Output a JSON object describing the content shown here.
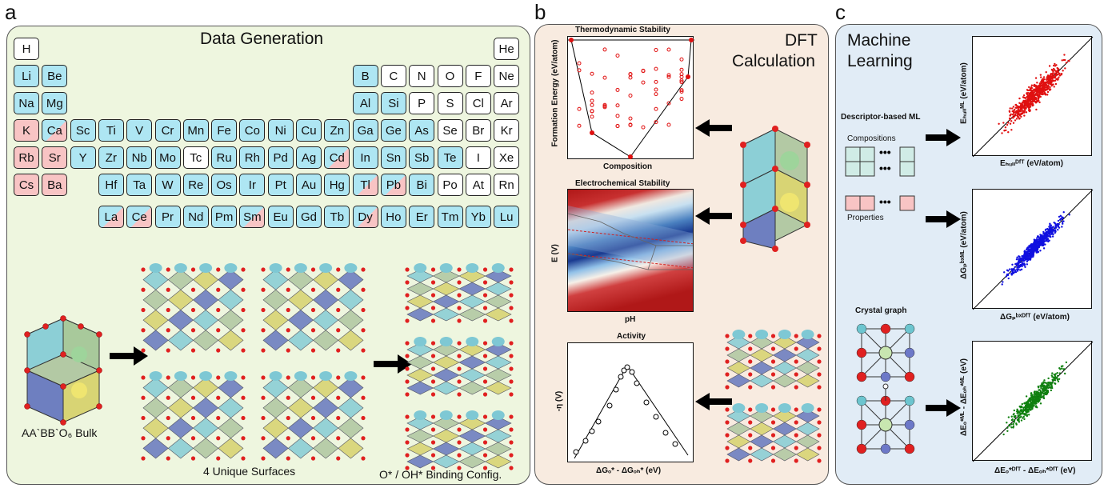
{
  "panels": {
    "a": {
      "letter": "a",
      "title": "Data Generation",
      "bulk_label": "AA`BB`O₆ Bulk",
      "surfaces_label": "4 Unique Surfaces",
      "binding_label": "O* / OH* Binding Config."
    },
    "b": {
      "letter": "b",
      "title_line1": "DFT",
      "title_line2": "Calculation",
      "thermo": {
        "title": "Thermodynamic Stability",
        "ylabel": "Formation Energy (eV/atom)",
        "xlabel": "Composition"
      },
      "electro": {
        "title": "Electrochemical Stability",
        "ylabel": "E (V)",
        "xlabel": "pH"
      },
      "activity": {
        "title": "Activity",
        "ylabel": "-η (V)",
        "xlabel": "ΔGₒ* - ΔGₒₕ* (eV)"
      }
    },
    "c": {
      "letter": "c",
      "title_line1": "Machine",
      "title_line2": "Learning",
      "descriptor_label": "Descriptor-based ML",
      "compositions_label": "Compositions",
      "properties_label": "Properties",
      "crystal_label": "Crystal graph",
      "plot1": {
        "xlabel": "Eₕᵤₗₗᴰᶠᵀ (eV/atom)",
        "ylabel": "Eₕᵤₗₗᴹᴸ (eV/atom)"
      },
      "plot2": {
        "xlabel": "ΔGₚᵇˣᴰᶠᵀ (eV/atom)",
        "ylabel": "ΔGₚᵇˣᴹᴸ (eV/atom)"
      },
      "plot3": {
        "xlabel": "ΔEₒ*ᴰᶠᵀ - ΔEₒₕ*ᴰᶠᵀ (eV)",
        "ylabel": "ΔEₒ*ᴹᴸ - ΔEₒₕ*ᴹᴸ (eV)"
      }
    }
  },
  "periodic_table": [
    {
      "s": "H",
      "r": 0,
      "c": 0,
      "t": "w"
    },
    {
      "s": "He",
      "r": 0,
      "c": 17,
      "t": "w"
    },
    {
      "s": "Li",
      "r": 1,
      "c": 0,
      "t": "b"
    },
    {
      "s": "Be",
      "r": 1,
      "c": 1,
      "t": "b"
    },
    {
      "s": "B",
      "r": 1,
      "c": 12,
      "t": "b"
    },
    {
      "s": "C",
      "r": 1,
      "c": 13,
      "t": "w"
    },
    {
      "s": "N",
      "r": 1,
      "c": 14,
      "t": "w"
    },
    {
      "s": "O",
      "r": 1,
      "c": 15,
      "t": "w"
    },
    {
      "s": "F",
      "r": 1,
      "c": 16,
      "t": "w"
    },
    {
      "s": "Ne",
      "r": 1,
      "c": 17,
      "t": "w"
    },
    {
      "s": "Na",
      "r": 2,
      "c": 0,
      "t": "b"
    },
    {
      "s": "Mg",
      "r": 2,
      "c": 1,
      "t": "b"
    },
    {
      "s": "Al",
      "r": 2,
      "c": 12,
      "t": "b"
    },
    {
      "s": "Si",
      "r": 2,
      "c": 13,
      "t": "b"
    },
    {
      "s": "P",
      "r": 2,
      "c": 14,
      "t": "w"
    },
    {
      "s": "S",
      "r": 2,
      "c": 15,
      "t": "w"
    },
    {
      "s": "Cl",
      "r": 2,
      "c": 16,
      "t": "w"
    },
    {
      "s": "Ar",
      "r": 2,
      "c": 17,
      "t": "w"
    },
    {
      "s": "K",
      "r": 3,
      "c": 0,
      "t": "p"
    },
    {
      "s": "Ca",
      "r": 3,
      "c": 1,
      "t": "pb"
    },
    {
      "s": "Sc",
      "r": 3,
      "c": 2,
      "t": "b"
    },
    {
      "s": "Ti",
      "r": 3,
      "c": 3,
      "t": "b"
    },
    {
      "s": "V",
      "r": 3,
      "c": 4,
      "t": "b"
    },
    {
      "s": "Cr",
      "r": 3,
      "c": 5,
      "t": "b"
    },
    {
      "s": "Mn",
      "r": 3,
      "c": 6,
      "t": "b"
    },
    {
      "s": "Fe",
      "r": 3,
      "c": 7,
      "t": "b"
    },
    {
      "s": "Co",
      "r": 3,
      "c": 8,
      "t": "b"
    },
    {
      "s": "Ni",
      "r": 3,
      "c": 9,
      "t": "b"
    },
    {
      "s": "Cu",
      "r": 3,
      "c": 10,
      "t": "b"
    },
    {
      "s": "Zn",
      "r": 3,
      "c": 11,
      "t": "b"
    },
    {
      "s": "Ga",
      "r": 3,
      "c": 12,
      "t": "b"
    },
    {
      "s": "Ge",
      "r": 3,
      "c": 13,
      "t": "b"
    },
    {
      "s": "As",
      "r": 3,
      "c": 14,
      "t": "b"
    },
    {
      "s": "Se",
      "r": 3,
      "c": 15,
      "t": "w"
    },
    {
      "s": "Br",
      "r": 3,
      "c": 16,
      "t": "w"
    },
    {
      "s": "Kr",
      "r": 3,
      "c": 17,
      "t": "w"
    },
    {
      "s": "Rb",
      "r": 4,
      "c": 0,
      "t": "p"
    },
    {
      "s": "Sr",
      "r": 4,
      "c": 1,
      "t": "p"
    },
    {
      "s": "Y",
      "r": 4,
      "c": 2,
      "t": "b"
    },
    {
      "s": "Zr",
      "r": 4,
      "c": 3,
      "t": "b"
    },
    {
      "s": "Nb",
      "r": 4,
      "c": 4,
      "t": "b"
    },
    {
      "s": "Mo",
      "r": 4,
      "c": 5,
      "t": "b"
    },
    {
      "s": "Tc",
      "r": 4,
      "c": 6,
      "t": "w"
    },
    {
      "s": "Ru",
      "r": 4,
      "c": 7,
      "t": "b"
    },
    {
      "s": "Rh",
      "r": 4,
      "c": 8,
      "t": "b"
    },
    {
      "s": "Pd",
      "r": 4,
      "c": 9,
      "t": "b"
    },
    {
      "s": "Ag",
      "r": 4,
      "c": 10,
      "t": "b"
    },
    {
      "s": "Cd",
      "r": 4,
      "c": 11,
      "t": "pb"
    },
    {
      "s": "In",
      "r": 4,
      "c": 12,
      "t": "b"
    },
    {
      "s": "Sn",
      "r": 4,
      "c": 13,
      "t": "b"
    },
    {
      "s": "Sb",
      "r": 4,
      "c": 14,
      "t": "b"
    },
    {
      "s": "Te",
      "r": 4,
      "c": 15,
      "t": "b"
    },
    {
      "s": "I",
      "r": 4,
      "c": 16,
      "t": "w"
    },
    {
      "s": "Xe",
      "r": 4,
      "c": 17,
      "t": "w"
    },
    {
      "s": "Cs",
      "r": 5,
      "c": 0,
      "t": "p"
    },
    {
      "s": "Ba",
      "r": 5,
      "c": 1,
      "t": "p"
    },
    {
      "s": "Hf",
      "r": 5,
      "c": 3,
      "t": "b"
    },
    {
      "s": "Ta",
      "r": 5,
      "c": 4,
      "t": "b"
    },
    {
      "s": "W",
      "r": 5,
      "c": 5,
      "t": "b"
    },
    {
      "s": "Re",
      "r": 5,
      "c": 6,
      "t": "b"
    },
    {
      "s": "Os",
      "r": 5,
      "c": 7,
      "t": "b"
    },
    {
      "s": "Ir",
      "r": 5,
      "c": 8,
      "t": "b"
    },
    {
      "s": "Pt",
      "r": 5,
      "c": 9,
      "t": "b"
    },
    {
      "s": "Au",
      "r": 5,
      "c": 10,
      "t": "b"
    },
    {
      "s": "Hg",
      "r": 5,
      "c": 11,
      "t": "b"
    },
    {
      "s": "Tl",
      "r": 5,
      "c": 12,
      "t": "pb"
    },
    {
      "s": "Pb",
      "r": 5,
      "c": 13,
      "t": "pb"
    },
    {
      "s": "Bi",
      "r": 5,
      "c": 14,
      "t": "b"
    },
    {
      "s": "Po",
      "r": 5,
      "c": 15,
      "t": "w"
    },
    {
      "s": "At",
      "r": 5,
      "c": 16,
      "t": "w"
    },
    {
      "s": "Rn",
      "r": 5,
      "c": 17,
      "t": "w"
    },
    {
      "s": "La",
      "r": 6,
      "c": 3,
      "t": "pb"
    },
    {
      "s": "Ce",
      "r": 6,
      "c": 4,
      "t": "pb"
    },
    {
      "s": "Pr",
      "r": 6,
      "c": 5,
      "t": "b"
    },
    {
      "s": "Nd",
      "r": 6,
      "c": 6,
      "t": "b"
    },
    {
      "s": "Pm",
      "r": 6,
      "c": 7,
      "t": "b"
    },
    {
      "s": "Sm",
      "r": 6,
      "c": 8,
      "t": "pb"
    },
    {
      "s": "Eu",
      "r": 6,
      "c": 9,
      "t": "b"
    },
    {
      "s": "Gd",
      "r": 6,
      "c": 10,
      "t": "b"
    },
    {
      "s": "Tb",
      "r": 6,
      "c": 11,
      "t": "b"
    },
    {
      "s": "Dy",
      "r": 6,
      "c": 12,
      "t": "pb"
    },
    {
      "s": "Ho",
      "r": 6,
      "c": 13,
      "t": "b"
    },
    {
      "s": "Er",
      "r": 6,
      "c": 14,
      "t": "b"
    },
    {
      "s": "Tm",
      "r": 6,
      "c": 15,
      "t": "b"
    },
    {
      "s": "Yb",
      "r": 6,
      "c": 16,
      "t": "b"
    },
    {
      "s": "Lu",
      "r": 6,
      "c": 17,
      "t": "b"
    }
  ],
  "colors": {
    "blue": "#aee6f3",
    "pink": "#f8c4c4",
    "white": "#ffffff",
    "red": "#e01010",
    "mlblue": "#1010e0",
    "green": "#108010"
  }
}
